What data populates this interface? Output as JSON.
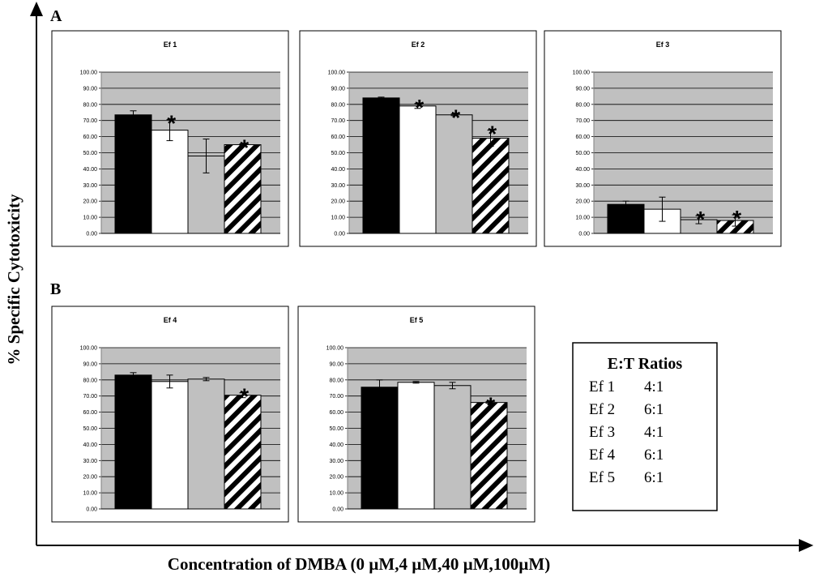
{
  "figure": {
    "panel_labels": [
      "A",
      "B"
    ],
    "y_axis_title": "% Specific Cytotoxicity",
    "x_axis_title": "Concentration of DMBA (0 µM,4 µM,40 µM,100µM)",
    "significance_symbol": "*"
  },
  "legend": {
    "title": "E:T Ratios",
    "rows": [
      {
        "effector": "Ef 1",
        "ratio": "4:1"
      },
      {
        "effector": "Ef 2",
        "ratio": "6:1"
      },
      {
        "effector": "Ef 3",
        "ratio": "4:1"
      },
      {
        "effector": "Ef 4",
        "ratio": "6:1"
      },
      {
        "effector": "Ef 5",
        "ratio": "6:1"
      }
    ]
  },
  "colors": {
    "plot_background": "#c0c0c0",
    "bar_0uM": "#000000",
    "bar_4uM": "#ffffff",
    "bar_40uM": "#c0c0c0",
    "bar_100uM_hatch": "#000000",
    "gridline": "#000000"
  },
  "chart_data": [
    {
      "type": "bar",
      "title": "Ef 1",
      "panel": "A",
      "categories": [
        "0 µM",
        "4 µM",
        "40 µM",
        "100µM"
      ],
      "values": [
        73.5,
        64.0,
        48.0,
        55.0
      ],
      "errors": [
        2.5,
        6.5,
        10.5,
        0.5
      ],
      "significant": [
        false,
        true,
        false,
        true
      ],
      "ylim": [
        0,
        100
      ],
      "yticks": [
        "0.00",
        "10.00",
        "20.00",
        "30.00",
        "40.00",
        "50.00",
        "60.00",
        "70.00",
        "80.00",
        "90.00",
        "100.00"
      ],
      "grid": true
    },
    {
      "type": "bar",
      "title": "Ef 2",
      "panel": "A",
      "categories": [
        "0 µM",
        "4 µM",
        "40 µM",
        "100µM"
      ],
      "values": [
        84.0,
        79.0,
        73.5,
        59.0
      ],
      "errors": [
        0.5,
        1.5,
        0.5,
        5.0
      ],
      "significant": [
        false,
        true,
        true,
        true
      ],
      "ylim": [
        0,
        100
      ],
      "yticks": [
        "0.00",
        "10.00",
        "20.00",
        "30.00",
        "40.00",
        "50.00",
        "60.00",
        "70.00",
        "80.00",
        "90.00",
        "100.00"
      ],
      "grid": true
    },
    {
      "type": "bar",
      "title": "Ef 3",
      "panel": "A",
      "categories": [
        "0 µM",
        "4 µM",
        "40 µM",
        "100µM"
      ],
      "values": [
        18.0,
        15.0,
        8.5,
        8.0
      ],
      "errors": [
        2.0,
        7.5,
        2.5,
        3.5
      ],
      "significant": [
        false,
        false,
        true,
        true
      ],
      "ylim": [
        0,
        100
      ],
      "yticks": [
        "0.00",
        "10.00",
        "20.00",
        "30.00",
        "40.00",
        "50.00",
        "60.00",
        "70.00",
        "80.00",
        "90.00",
        "100.00"
      ],
      "grid": true
    },
    {
      "type": "bar",
      "title": "Ef 4",
      "panel": "B",
      "categories": [
        "0 µM",
        "4 µM",
        "40 µM",
        "100µM"
      ],
      "values": [
        83.0,
        79.0,
        80.5,
        70.5
      ],
      "errors": [
        1.5,
        4.0,
        1.0,
        1.5
      ],
      "significant": [
        false,
        false,
        false,
        true
      ],
      "ylim": [
        0,
        100
      ],
      "yticks": [
        "0.00",
        "10.00",
        "20.00",
        "30.00",
        "40.00",
        "50.00",
        "60.00",
        "70.00",
        "80.00",
        "90.00",
        "100.00"
      ],
      "grid": true
    },
    {
      "type": "bar",
      "title": "Ef 5",
      "panel": "B",
      "categories": [
        "0 µM",
        "4 µM",
        "40 µM",
        "100µM"
      ],
      "values": [
        75.5,
        78.5,
        76.5,
        66.0
      ],
      "errors": [
        4.5,
        0.5,
        2.0,
        0.5
      ],
      "significant": [
        false,
        false,
        false,
        true
      ],
      "ylim": [
        0,
        100
      ],
      "yticks": [
        "0.00",
        "10.00",
        "20.00",
        "30.00",
        "40.00",
        "50.00",
        "60.00",
        "70.00",
        "80.00",
        "90.00",
        "100.00"
      ],
      "grid": true
    }
  ]
}
